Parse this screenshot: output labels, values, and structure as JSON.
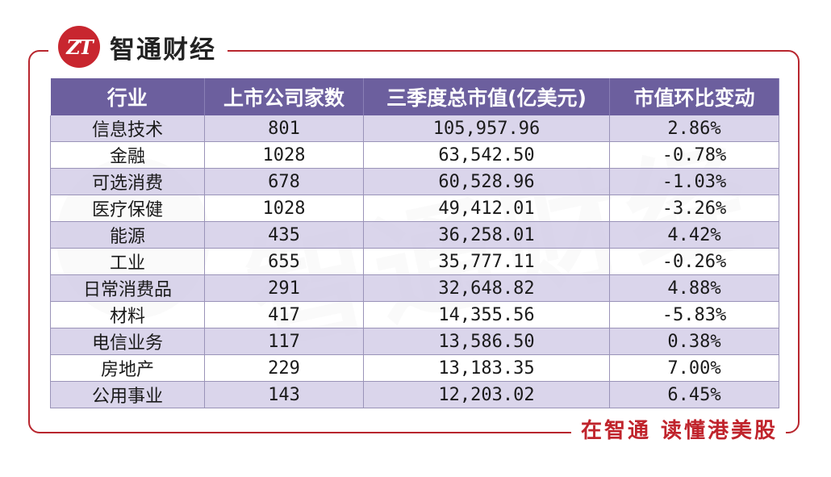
{
  "brand": {
    "logo_text": "ZT",
    "name": "智通财经"
  },
  "watermark_text": "智通财经",
  "slogan": "在智通  读懂港美股",
  "table": {
    "headers": [
      "行业",
      "上市公司家数",
      "三季度总市值(亿美元)",
      "市值环比变动"
    ],
    "rows": [
      [
        "信息技术",
        "801",
        "105,957.96",
        "2.86%"
      ],
      [
        "金融",
        "1028",
        "63,542.50",
        "-0.78%"
      ],
      [
        "可选消费",
        "678",
        "60,528.96",
        "-1.03%"
      ],
      [
        "医疗保健",
        "1028",
        "49,412.01",
        "-3.26%"
      ],
      [
        "能源",
        "435",
        "36,258.01",
        "4.42%"
      ],
      [
        "工业",
        "655",
        "35,777.11",
        "-0.26%"
      ],
      [
        "日常消费品",
        "291",
        "32,648.82",
        "4.88%"
      ],
      [
        "材料",
        "417",
        "14,355.56",
        "-5.83%"
      ],
      [
        "电信业务",
        "117",
        "13,586.50",
        "0.38%"
      ],
      [
        "房地产",
        "229",
        "13,183.35",
        "7.00%"
      ],
      [
        "公用事业",
        "143",
        "12,203.02",
        "6.45%"
      ]
    ]
  },
  "colors": {
    "header_bg": "#6c5f9e",
    "stripe": "#d4cee8",
    "accent_red": "#c0242c"
  }
}
